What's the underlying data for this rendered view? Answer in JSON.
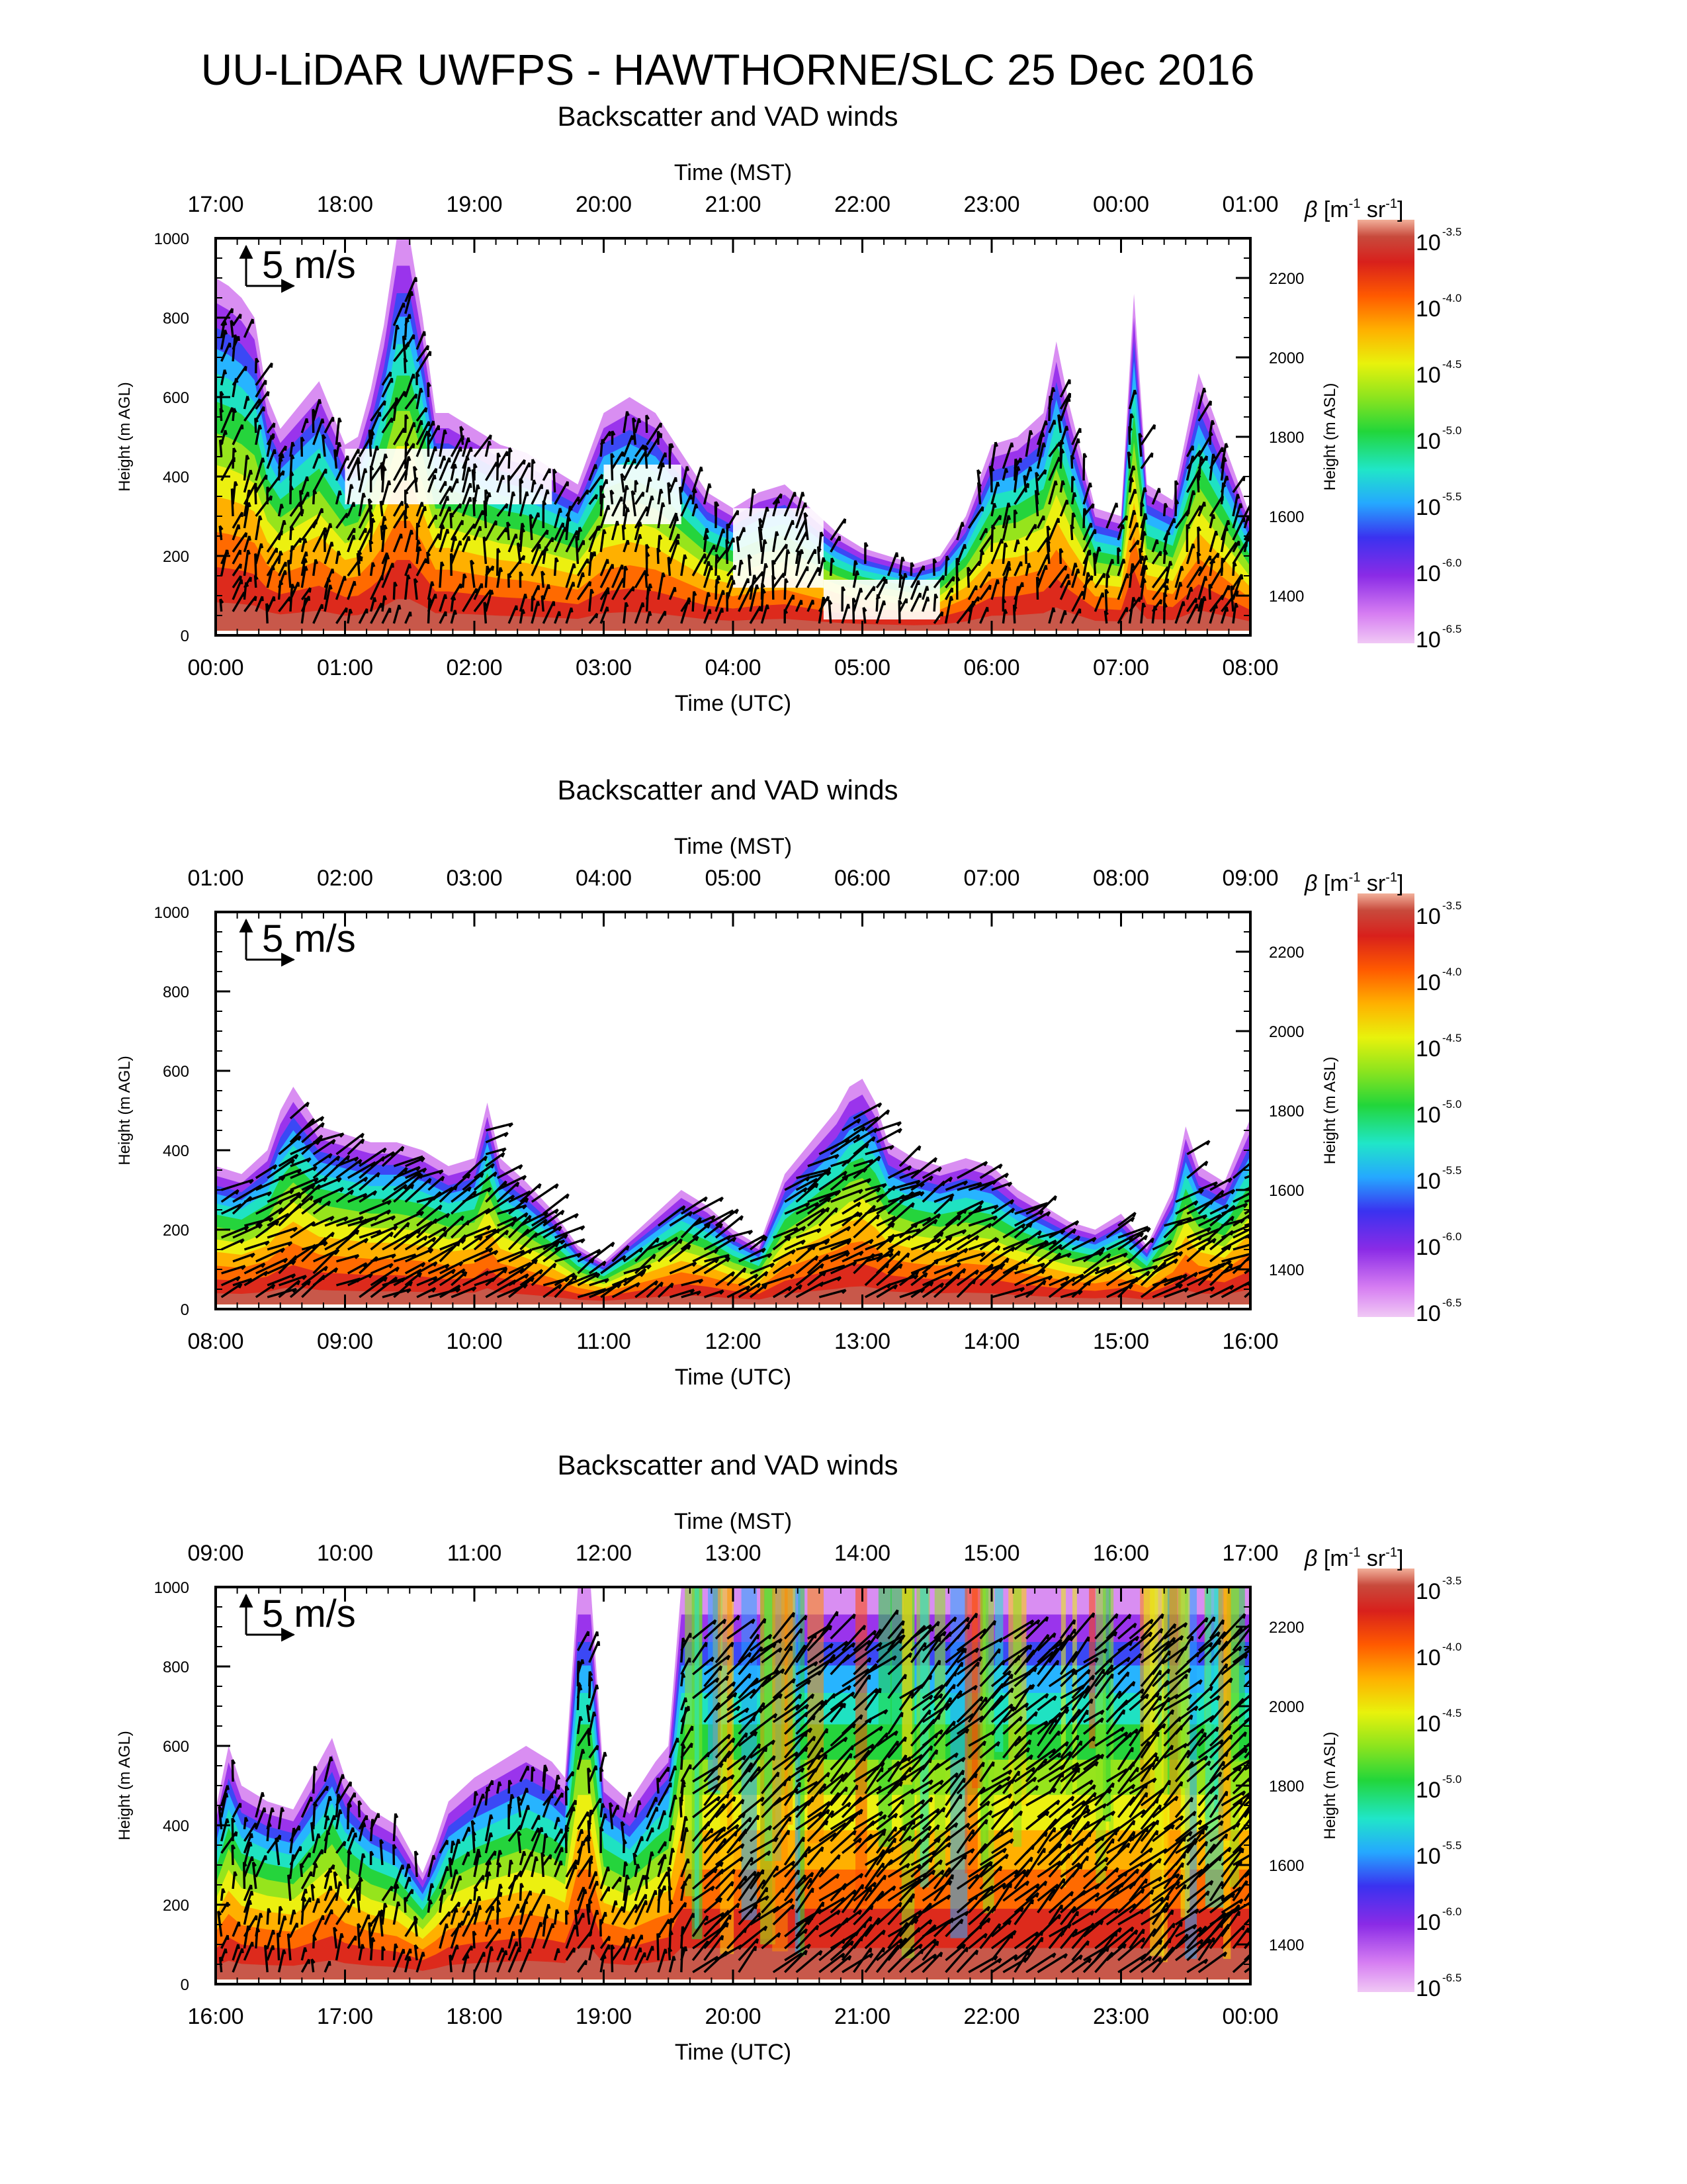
{
  "figure": {
    "title": "UU-LiDAR UWFPS - HAWTHORNE/SLC 25 Dec 2016"
  },
  "colors": {
    "frame": "#000000",
    "vector": "#000000",
    "colorscale": [
      "#ffffff",
      "#e88ff0",
      "#b24cf0",
      "#6b1be8",
      "#1e38ff",
      "#25a8ff",
      "#20e6c8",
      "#22d63a",
      "#8ce41e",
      "#e8f20c",
      "#ffd400",
      "#ff8c00",
      "#ff4a00",
      "#e1261c",
      "#c21a1a",
      "#f0a090"
    ]
  },
  "chart_data": [
    {
      "type": "heatmap",
      "subtitle": "Backscatter and VAD winds",
      "top_axis_label": "Time (MST)",
      "top_ticks": [
        "17:00",
        "18:00",
        "19:00",
        "20:00",
        "21:00",
        "22:00",
        "23:00",
        "00:00",
        "01:00"
      ],
      "bottom_axis_label": "Time (UTC)",
      "bottom_ticks": [
        "00:00",
        "01:00",
        "02:00",
        "03:00",
        "04:00",
        "05:00",
        "06:00",
        "07:00",
        "08:00"
      ],
      "x_range_utc_hours": [
        0,
        8
      ],
      "left_axis_label": "Height (m AGL)",
      "left_ticks": [
        "0",
        "200",
        "400",
        "600",
        "800",
        "1000"
      ],
      "ylim_agl": [
        0,
        1000
      ],
      "right_axis_label": "Height (m ASL)",
      "right_ticks": [
        "1400",
        "1600",
        "1800",
        "2000",
        "2200"
      ],
      "right_tick_values": [
        1400,
        1600,
        1800,
        2000,
        2200
      ],
      "ylim_asl": [
        1300,
        2300
      ],
      "reference_vector_label": "5 m/s",
      "colorbar": {
        "label_html": "β [m⁻¹ sr⁻¹]",
        "label_beta": "β",
        "label_unit": "[m",
        "label_unit_exp": "-1",
        "label_unit_sr": "sr",
        "label_unit_sr_exp": "-1",
        "label_close": "]",
        "base": "10",
        "exponents": [
          "-3.5",
          "-4.0",
          "-4.5",
          "-5.0",
          "-5.5",
          "-6.0",
          "-6.5"
        ],
        "log10_range": [
          -6.6,
          -3.4
        ]
      },
      "layer_top_agl": {
        "utc_hour": [
          0.0,
          0.1,
          0.2,
          0.3,
          0.4,
          0.5,
          0.6,
          0.7,
          0.8,
          0.9,
          1.0,
          1.1,
          1.2,
          1.3,
          1.4,
          1.5,
          1.6,
          1.7,
          1.8,
          1.9,
          2.0,
          2.2,
          2.4,
          2.6,
          2.8,
          3.0,
          3.2,
          3.4,
          3.6,
          3.8,
          4.0,
          4.2,
          4.4,
          4.6,
          4.8,
          5.0,
          5.2,
          5.4,
          5.6,
          5.8,
          6.0,
          6.2,
          6.4,
          6.5,
          6.6,
          6.8,
          7.0,
          7.1,
          7.2,
          7.4,
          7.6,
          7.8,
          8.0
        ],
        "height_m": [
          900,
          880,
          850,
          800,
          600,
          520,
          560,
          600,
          640,
          560,
          480,
          500,
          620,
          780,
          1000,
          1000,
          800,
          560,
          560,
          540,
          520,
          480,
          460,
          420,
          380,
          560,
          600,
          560,
          460,
          360,
          320,
          360,
          380,
          320,
          260,
          220,
          200,
          180,
          200,
          300,
          480,
          500,
          560,
          740,
          580,
          320,
          300,
          860,
          380,
          340,
          660,
          480,
          300
        ]
      }
    },
    {
      "type": "heatmap",
      "subtitle": "Backscatter and VAD winds",
      "top_axis_label": "Time (MST)",
      "top_ticks": [
        "01:00",
        "02:00",
        "03:00",
        "04:00",
        "05:00",
        "06:00",
        "07:00",
        "08:00",
        "09:00"
      ],
      "bottom_axis_label": "Time (UTC)",
      "bottom_ticks": [
        "08:00",
        "09:00",
        "10:00",
        "11:00",
        "12:00",
        "13:00",
        "14:00",
        "15:00",
        "16:00"
      ],
      "x_range_utc_hours": [
        8,
        16
      ],
      "left_axis_label": "Height (m AGL)",
      "left_ticks": [
        "0",
        "200",
        "400",
        "600",
        "800",
        "1000"
      ],
      "ylim_agl": [
        0,
        1000
      ],
      "right_axis_label": "Height (m ASL)",
      "right_ticks": [
        "1400",
        "1600",
        "1800",
        "2000",
        "2200"
      ],
      "right_tick_values": [
        1400,
        1600,
        1800,
        2000,
        2200
      ],
      "ylim_asl": [
        1300,
        2300
      ],
      "reference_vector_label": "5 m/s",
      "colorbar": {
        "label_beta": "β",
        "label_unit": "[m",
        "label_unit_exp": "-1",
        "label_unit_sr": "sr",
        "label_unit_sr_exp": "-1",
        "label_close": "]",
        "base": "10",
        "exponents": [
          "-3.5",
          "-4.0",
          "-4.5",
          "-5.0",
          "-5.5",
          "-6.0",
          "-6.5"
        ],
        "log10_range": [
          -6.6,
          -3.4
        ]
      },
      "layer_top_agl": {
        "utc_hour": [
          8.0,
          8.2,
          8.4,
          8.5,
          8.6,
          8.8,
          9.0,
          9.2,
          9.4,
          9.6,
          9.8,
          10.0,
          10.1,
          10.2,
          10.4,
          10.6,
          10.8,
          11.0,
          11.2,
          11.4,
          11.6,
          11.8,
          12.0,
          12.2,
          12.4,
          12.6,
          12.8,
          12.9,
          13.0,
          13.1,
          13.2,
          13.4,
          13.6,
          13.8,
          14.0,
          14.2,
          14.4,
          14.6,
          14.8,
          15.0,
          15.2,
          15.4,
          15.5,
          15.6,
          15.8,
          16.0
        ],
        "height_m": [
          360,
          340,
          400,
          500,
          560,
          460,
          440,
          420,
          420,
          400,
          360,
          380,
          520,
          380,
          320,
          250,
          160,
          120,
          180,
          240,
          300,
          260,
          200,
          160,
          340,
          420,
          500,
          560,
          580,
          520,
          420,
          380,
          360,
          380,
          360,
          300,
          260,
          220,
          200,
          240,
          160,
          300,
          460,
          360,
          320,
          480
        ]
      }
    },
    {
      "type": "heatmap",
      "subtitle": "Backscatter and VAD winds",
      "top_axis_label": "Time (MST)",
      "top_ticks": [
        "09:00",
        "10:00",
        "11:00",
        "12:00",
        "13:00",
        "14:00",
        "15:00",
        "16:00",
        "17:00"
      ],
      "bottom_axis_label": "Time (UTC)",
      "bottom_ticks": [
        "16:00",
        "17:00",
        "18:00",
        "19:00",
        "20:00",
        "21:00",
        "22:00",
        "23:00",
        "00:00"
      ],
      "x_range_utc_hours": [
        16,
        24
      ],
      "left_axis_label": "Height (m AGL)",
      "left_ticks": [
        "0",
        "200",
        "400",
        "600",
        "800",
        "1000"
      ],
      "ylim_agl": [
        0,
        1000
      ],
      "right_axis_label": "Height (m ASL)",
      "right_ticks": [
        "1400",
        "1600",
        "1800",
        "2000",
        "2200"
      ],
      "right_tick_values": [
        1400,
        1600,
        1800,
        2000,
        2200
      ],
      "ylim_asl": [
        1300,
        2300
      ],
      "reference_vector_label": "5 m/s",
      "colorbar": {
        "label_beta": "β",
        "label_unit": "[m",
        "label_unit_exp": "-1",
        "label_unit_sr": "sr",
        "label_unit_sr_exp": "-1",
        "label_close": "]",
        "base": "10",
        "exponents": [
          "-3.5",
          "-4.0",
          "-4.5",
          "-5.0",
          "-5.5",
          "-6.0",
          "-6.5"
        ],
        "log10_range": [
          -6.6,
          -3.4
        ]
      },
      "layer_top_agl": {
        "utc_hour": [
          16.0,
          16.1,
          16.2,
          16.4,
          16.6,
          16.8,
          16.9,
          17.0,
          17.2,
          17.4,
          17.6,
          17.7,
          17.8,
          18.0,
          18.2,
          18.4,
          18.6,
          18.7,
          18.8,
          18.9,
          19.0,
          19.2,
          19.4,
          19.5,
          19.6,
          19.8,
          20.0,
          20.5,
          21.0,
          21.5,
          22.0,
          22.5,
          23.0,
          23.5,
          24.0
        ],
        "height_m": [
          440,
          600,
          500,
          460,
          440,
          560,
          620,
          520,
          440,
          400,
          280,
          360,
          460,
          520,
          560,
          600,
          560,
          520,
          1000,
          1000,
          520,
          460,
          560,
          600,
          1000,
          1000,
          1000,
          1000,
          1000,
          1000,
          1000,
          1000,
          1000,
          1000,
          1000
        ]
      }
    }
  ]
}
